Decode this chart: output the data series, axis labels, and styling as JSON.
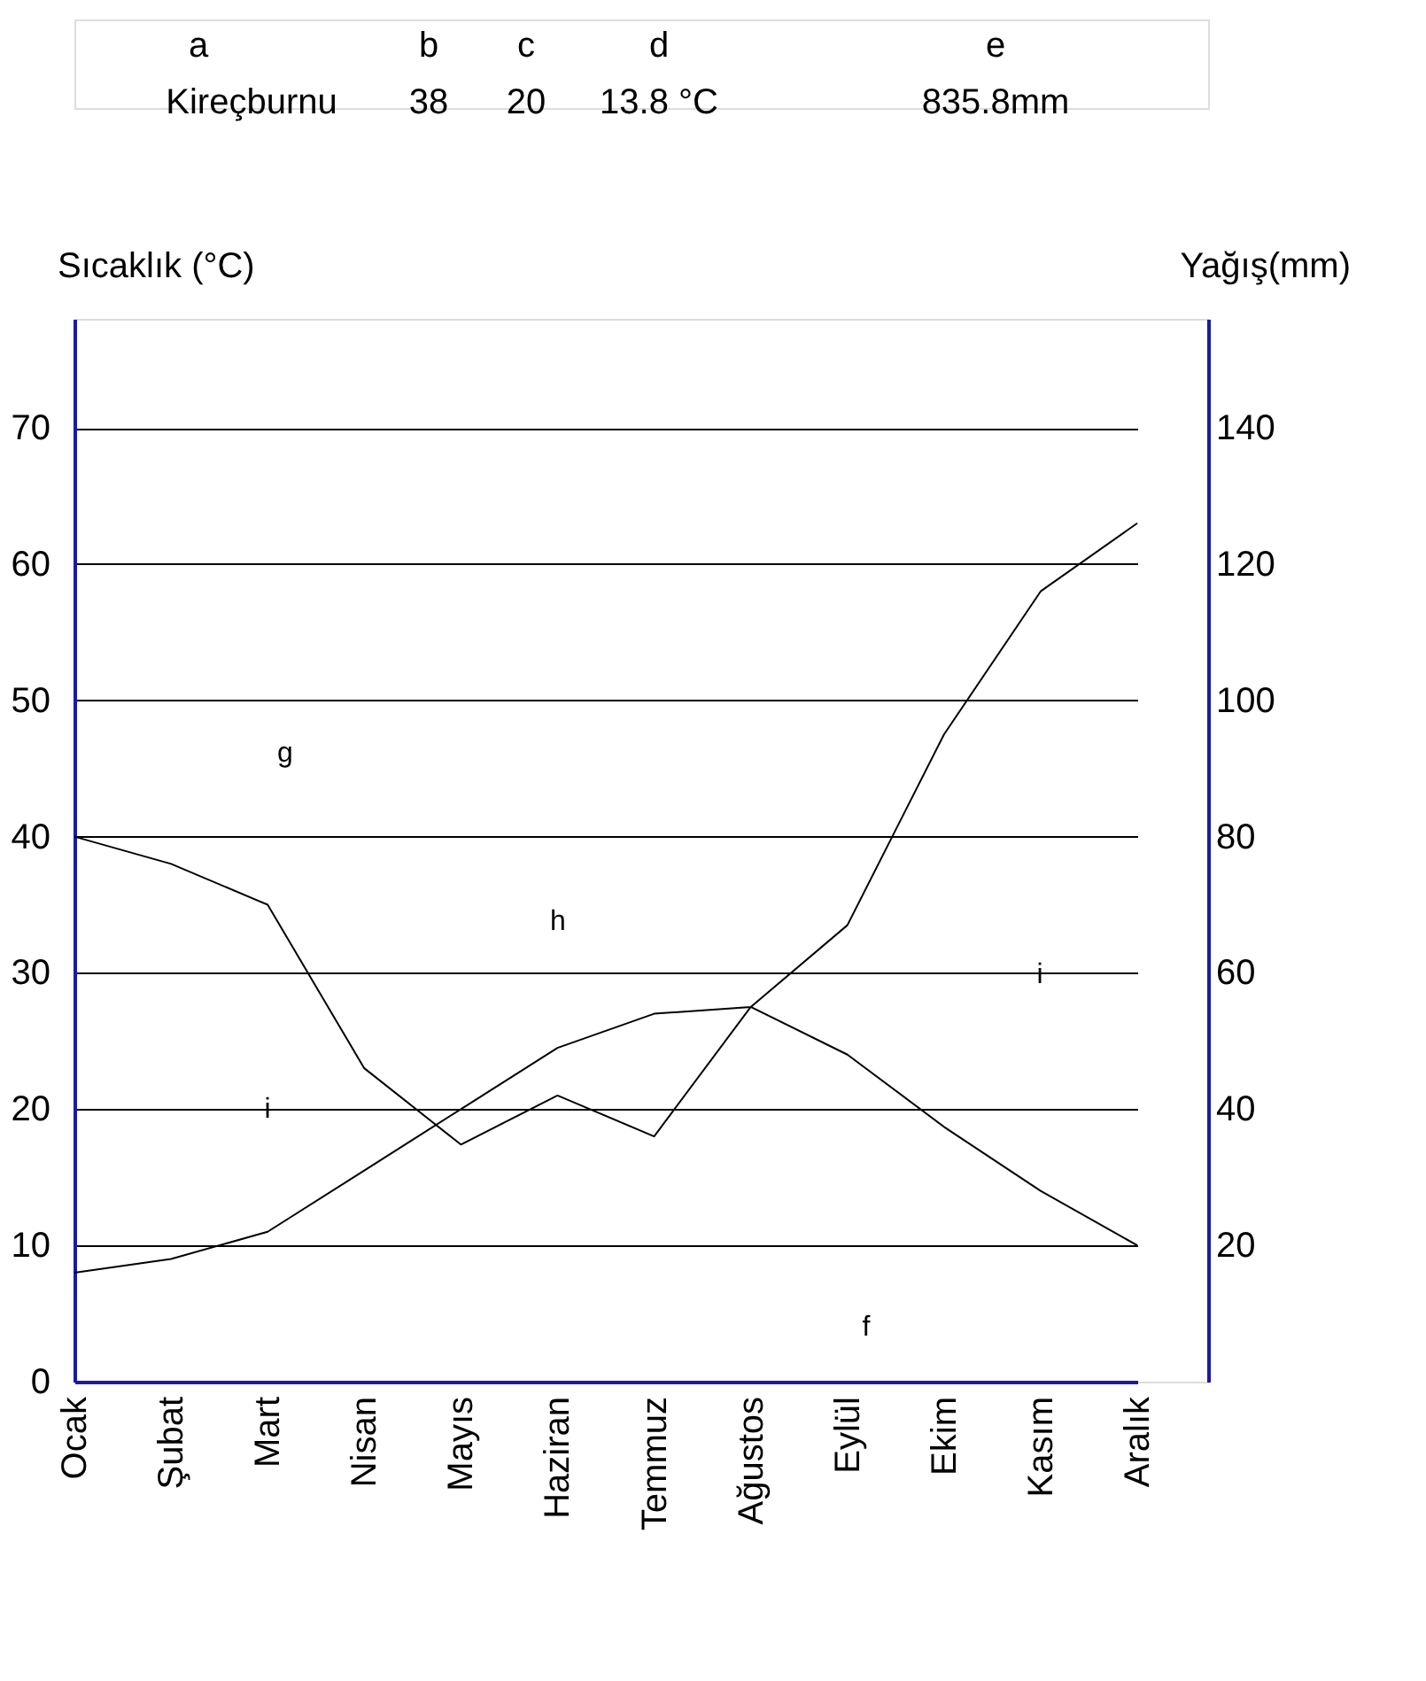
{
  "chart_data": {
    "type": "line",
    "categories": [
      "Ocak",
      "Şubat",
      "Mart",
      "Nisan",
      "Mayıs",
      "Haziran",
      "Temmuz",
      "Ağustos",
      "Eylül",
      "Ekim",
      "Kasım",
      "Aralık"
    ],
    "series": [
      {
        "color": "#000000",
        "values": [
          40,
          38,
          35,
          23,
          17.4,
          21,
          18,
          27.5,
          24,
          18.7,
          14,
          10
        ]
      },
      {
        "color": "#000000",
        "axis": "y2",
        "values": [
          16,
          18,
          22,
          31,
          40,
          49,
          54,
          55,
          67,
          95,
          116,
          126
        ]
      }
    ],
    "ylabel": "Sıcaklık  (°C)",
    "y2label": "Yağış(mm)",
    "ylim": [
      0,
      78
    ],
    "yticks": [
      0,
      10,
      20,
      30,
      40,
      50,
      60,
      70
    ],
    "y2lim": [
      0,
      156
    ],
    "y2ticks": [
      20,
      40,
      60,
      80,
      100,
      120,
      140
    ],
    "grid": "y",
    "line_style": "solid",
    "marker": "none",
    "annotations": [
      "a",
      "b",
      "c",
      "d",
      "e",
      "Kireçburnu",
      "38",
      "20",
      "13.8 °C",
      "835.8mm",
      "g",
      "h",
      "f",
      "i",
      "i"
    ]
  }
}
